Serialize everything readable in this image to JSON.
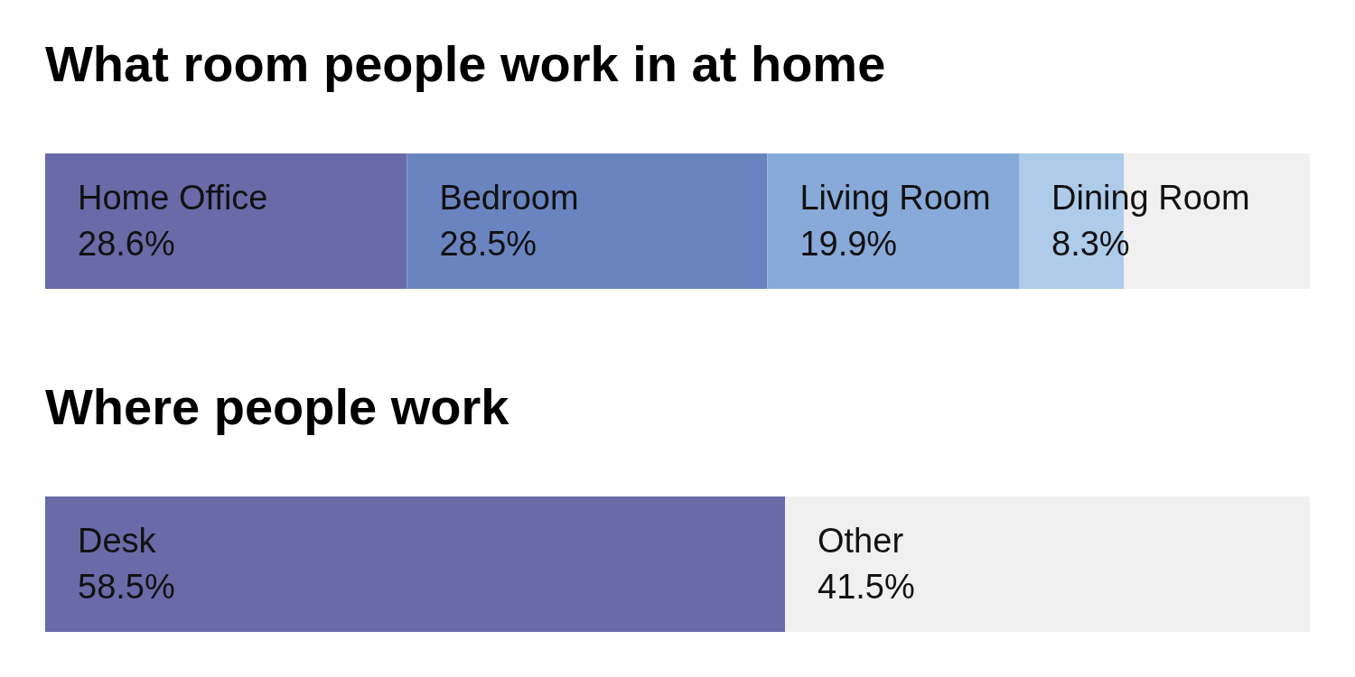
{
  "chart_data": [
    {
      "type": "bar",
      "title": "What room people work in at home",
      "orientation": "horizontal",
      "stacked": true,
      "categories": [
        null
      ],
      "xlim": [
        0,
        100
      ],
      "tick_labels": false,
      "series": [
        {
          "name": "Home Office",
          "color": "#6a6aa8",
          "values": [
            28.6
          ],
          "value_labels": [
            "28.6%"
          ]
        },
        {
          "name": "Bedroom",
          "color": "#6a84c0",
          "values": [
            28.5
          ],
          "value_labels": [
            "28.5%"
          ]
        },
        {
          "name": "Living Room",
          "color": "#88aad9",
          "values": [
            19.9
          ],
          "value_labels": [
            "19.9%"
          ]
        },
        {
          "name": "Dining Room",
          "color": "#aecbea",
          "values": [
            8.3
          ],
          "value_labels": [
            "8.3%"
          ]
        },
        {
          "color": "#f0f0f0",
          "values": [
            14.7
          ],
          "value_labels": [
            null
          ]
        }
      ]
    },
    {
      "type": "bar",
      "title": "Where people work",
      "orientation": "horizontal",
      "stacked": true,
      "categories": [
        null
      ],
      "xlim": [
        0,
        100
      ],
      "tick_labels": false,
      "series": [
        {
          "name": "Desk",
          "color": "#6a6aa8",
          "values": [
            58.5
          ],
          "value_labels": [
            "58.5%"
          ]
        },
        {
          "name": "Other",
          "color": "#f0f0f0",
          "values": [
            41.5
          ],
          "value_labels": [
            "41.5%"
          ]
        }
      ]
    }
  ]
}
